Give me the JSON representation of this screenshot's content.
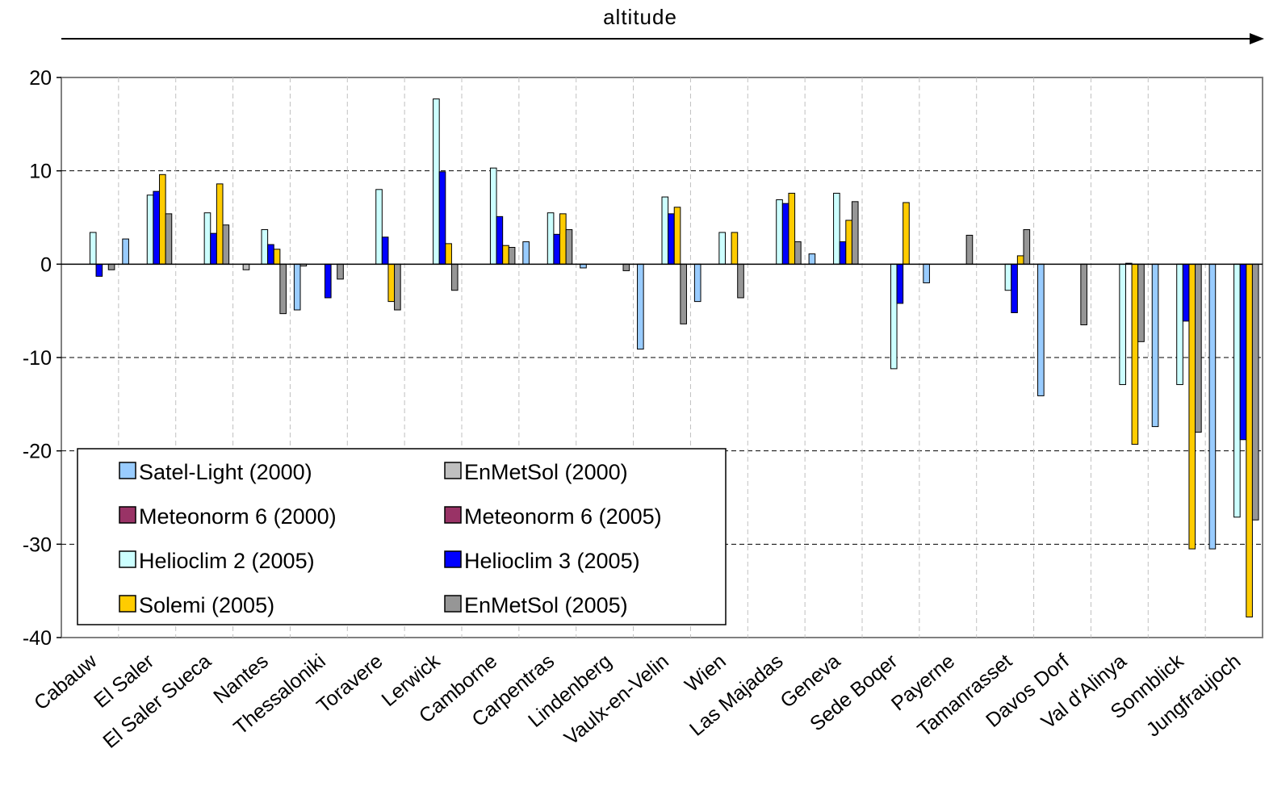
{
  "chart_data": {
    "type": "bar",
    "title": "altitude",
    "xlabel": "",
    "ylabel": "",
    "ylim": [
      -40,
      20
    ],
    "yticks": [
      20,
      10,
      0,
      -10,
      -20,
      -30,
      -40
    ],
    "grid": true,
    "legend_position": "bottom-left",
    "categories": [
      "Cabauw",
      "El Saler",
      "El Saler Sueca",
      "Nantes",
      "Thessaloniki",
      "Toravere",
      "Lerwick",
      "Camborne",
      "Carpentras",
      "Lindenberg",
      "Vaulx-en-Velin",
      "Wien",
      "Las Majadas",
      "Geneva",
      "Sede Boqer",
      "Payerne",
      "Tamanrasset",
      "Davos Dorf",
      "Val d'Alinya",
      "Sonnblick",
      "Jungfraujoch"
    ],
    "series": [
      {
        "name": "Satel-Light (2000)",
        "color": "#99ccff",
        "values": [
          null,
          2.7,
          null,
          null,
          -4.9,
          null,
          null,
          null,
          2.4,
          -0.4,
          -9.1,
          -4.0,
          null,
          1.1,
          null,
          -2.0,
          null,
          -14.1,
          null,
          -17.4,
          -30.5
        ]
      },
      {
        "name": "EnMetSol (2000)",
        "color": "#c0c0c0",
        "values": [
          null,
          null,
          null,
          -0.6,
          -0.2,
          null,
          null,
          null,
          null,
          null,
          null,
          null,
          null,
          null,
          null,
          null,
          null,
          null,
          null,
          null,
          null
        ]
      },
      {
        "name": "Meteonorm 6 (2000)",
        "color": "#993366",
        "values": [
          null,
          null,
          null,
          null,
          null,
          null,
          null,
          null,
          null,
          null,
          null,
          null,
          null,
          null,
          null,
          null,
          null,
          null,
          null,
          null,
          null
        ]
      },
      {
        "name": "Meteonorm 6 (2005)",
        "color": "#993366",
        "values": [
          null,
          null,
          null,
          null,
          null,
          null,
          null,
          null,
          null,
          null,
          null,
          null,
          null,
          null,
          null,
          null,
          null,
          null,
          null,
          null,
          null
        ]
      },
      {
        "name": "Helioclim 2 (2005)",
        "color": "#ccffff",
        "values": [
          3.4,
          7.4,
          5.5,
          3.7,
          null,
          8.0,
          17.7,
          10.3,
          5.5,
          null,
          7.2,
          3.4,
          6.9,
          7.6,
          -11.2,
          null,
          -2.8,
          null,
          -12.9,
          -12.9,
          -27.1
        ]
      },
      {
        "name": "Helioclim 3 (2005)",
        "color": "#0000ff",
        "values": [
          -1.3,
          7.8,
          3.3,
          2.1,
          -3.6,
          2.9,
          9.9,
          5.1,
          3.2,
          null,
          5.4,
          null,
          6.5,
          2.4,
          -4.2,
          null,
          -5.2,
          null,
          0.1,
          -6.1,
          -18.8
        ]
      },
      {
        "name": "Solemi (2005)",
        "color": "#ffcc00",
        "values": [
          null,
          9.6,
          8.6,
          1.6,
          null,
          -4.0,
          2.2,
          2.0,
          5.4,
          null,
          6.1,
          3.4,
          7.6,
          4.7,
          6.6,
          null,
          0.9,
          null,
          -19.3,
          -30.5,
          -37.8
        ]
      },
      {
        "name": "EnMetSol (2005)",
        "color": "#969696",
        "values": [
          -0.6,
          5.4,
          4.2,
          -5.3,
          -1.6,
          -4.9,
          -2.8,
          1.8,
          3.7,
          -0.7,
          -6.4,
          -3.6,
          2.4,
          6.7,
          null,
          3.1,
          3.7,
          -6.5,
          -8.3,
          -18.0,
          -27.4
        ]
      }
    ],
    "legend_layout": [
      [
        "Satel-Light (2000)",
        "EnMetSol (2000)"
      ],
      [
        "Meteonorm 6 (2000)",
        "Meteonorm 6 (2005)"
      ],
      [
        "Helioclim 2 (2005)",
        "Helioclim 3 (2005)"
      ],
      [
        "Solemi (2005)",
        "EnMetSol (2005)"
      ]
    ]
  }
}
